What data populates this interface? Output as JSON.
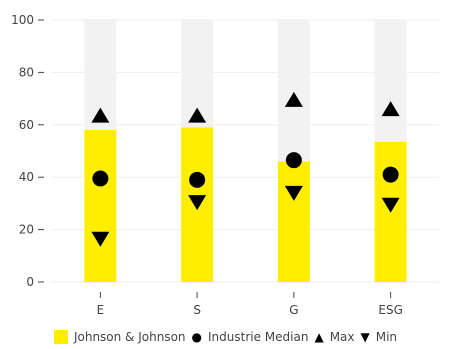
{
  "colors": {
    "bar": "#FFEE00",
    "background_bar": "#F2F2F2",
    "marker": "#000000",
    "axis": "#444444"
  },
  "chart_data": {
    "type": "bar",
    "categories": [
      "E",
      "S",
      "G",
      "ESG"
    ],
    "ylim": [
      0,
      100
    ],
    "yticks": [
      0,
      20,
      40,
      60,
      80,
      100
    ],
    "grid": true,
    "legend_position": "bottom",
    "series": [
      {
        "name": "Johnson & Johnson",
        "kind": "bar",
        "values": [
          58,
          59,
          46,
          53.5
        ]
      },
      {
        "name": "Industrie Median",
        "kind": "circle",
        "values": [
          39.5,
          39,
          46.5,
          41
        ]
      },
      {
        "name": "Max",
        "kind": "triangle-up",
        "values": [
          63.5,
          63.5,
          69.5,
          66
        ]
      },
      {
        "name": "Min",
        "kind": "triangle-down",
        "values": [
          16.5,
          30.5,
          34,
          29.5
        ]
      }
    ]
  },
  "legend": {
    "items": [
      {
        "label": "Johnson & Johnson",
        "icon": "square-swatch",
        "glyph": ""
      },
      {
        "label": "Industrie Median",
        "icon": "circle-icon",
        "glyph": "●"
      },
      {
        "label": "Max",
        "icon": "triangle-up-icon",
        "glyph": "▲"
      },
      {
        "label": "Min",
        "icon": "triangle-down-icon",
        "glyph": "▼"
      }
    ]
  }
}
